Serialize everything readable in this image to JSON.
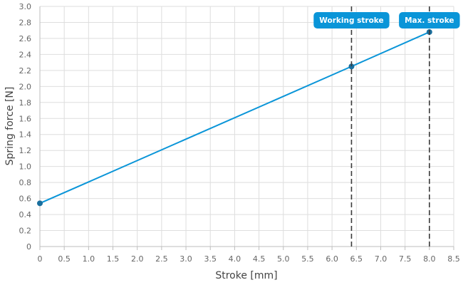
{
  "chart_data": {
    "type": "line",
    "xlabel": "Stroke [mm]",
    "ylabel": "Spring force [N]",
    "xlim": [
      0,
      8.5
    ],
    "ylim": [
      0,
      3.0
    ],
    "x_ticks": [
      "0",
      "0.5",
      "1.0",
      "1.5",
      "2.0",
      "2.5",
      "3.0",
      "3.5",
      "4.0",
      "4.5",
      "5.0",
      "5.5",
      "6.0",
      "6.5",
      "7.0",
      "7.5",
      "8.0",
      "8.5"
    ],
    "y_ticks": [
      "0",
      "0.2",
      "0.4",
      "0.6",
      "0.8",
      "1.0",
      "1.2",
      "1.4",
      "1.6",
      "1.8",
      "2.0",
      "2.2",
      "2.4",
      "2.6",
      "2.8",
      "3.0"
    ],
    "grid": true,
    "series": [
      {
        "color": "#0a95d8",
        "points": [
          {
            "x": 0,
            "y": 0.54
          },
          {
            "x": 6.4,
            "y": 2.25
          },
          {
            "x": 8.0,
            "y": 2.68
          }
        ]
      }
    ],
    "markers": [
      {
        "label": "Working stroke",
        "x": 6.4
      },
      {
        "label": "Max. stroke",
        "x": 8.0
      }
    ]
  }
}
